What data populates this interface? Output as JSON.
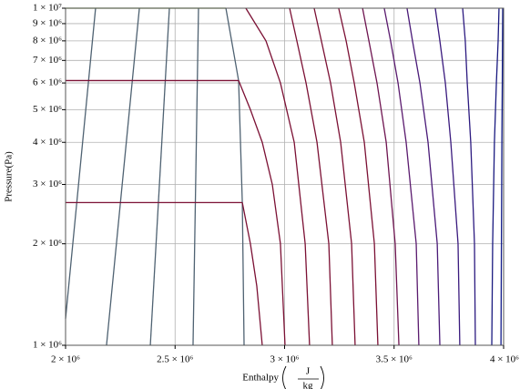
{
  "chart_data": {
    "type": "line",
    "ylabel": "Pressure(Pa)",
    "xlabel": "Enthalpy",
    "xunit_numerator": "J",
    "xunit_denominator": "kg",
    "ylog": true,
    "grid": true,
    "xlim": [
      2000000,
      4000000
    ],
    "ylim": [
      1000000,
      10000000
    ],
    "xticks": [
      {
        "value": 2000000,
        "label": "2 × 10⁶"
      },
      {
        "value": 2500000,
        "label": "2.5 × 10⁶"
      },
      {
        "value": 3000000,
        "label": "3 × 10⁶"
      },
      {
        "value": 3500000,
        "label": "3.5 × 10⁶"
      },
      {
        "value": 4000000,
        "label": "4 × 10⁶"
      }
    ],
    "yticks": [
      {
        "value": 1000000,
        "label": "1 × 10⁶"
      },
      {
        "value": 2000000,
        "label": "2 × 10⁶"
      },
      {
        "value": 3000000,
        "label": "3 × 10⁶"
      },
      {
        "value": 4000000,
        "label": "4 × 10⁶"
      },
      {
        "value": 5000000,
        "label": "5 × 10⁶"
      },
      {
        "value": 6000000,
        "label": "6 × 10⁶"
      },
      {
        "value": 7000000,
        "label": "7 × 10⁶"
      },
      {
        "value": 8000000,
        "label": "8 × 10⁶"
      },
      {
        "value": 9000000,
        "label": "9 × 10⁶"
      },
      {
        "value": 10000000,
        "label": "1 × 10⁷"
      }
    ],
    "series": [
      {
        "color": "#4f6272",
        "x": [
          2000000,
          2137000
        ],
        "values": [
          1200000,
          10000000
        ]
      },
      {
        "color": "#4f6272",
        "x": [
          2187000,
          2337000
        ],
        "values": [
          1000000,
          10000000
        ]
      },
      {
        "color": "#4f6272",
        "x": [
          2387000,
          2474000
        ],
        "values": [
          1000000,
          10000000
        ]
      },
      {
        "color": "#4f6272",
        "x": [
          2582000,
          2607000
        ],
        "values": [
          1000000,
          10000000
        ]
      },
      {
        "color": "#4f6272",
        "x": [
          2732000,
          2790000,
          2807000,
          2815000
        ],
        "values": [
          10000000,
          6100000,
          2650000,
          1000000
        ]
      },
      {
        "color": "#7a9a3c",
        "x": [
          2000000,
          2732000
        ],
        "values": [
          10000000,
          10000000
        ]
      },
      {
        "color": "#7b1034",
        "x": [
          2000000,
          2790000
        ],
        "values": [
          6100000,
          6100000
        ]
      },
      {
        "color": "#7b1034",
        "x": [
          2000000,
          2807000
        ],
        "values": [
          2650000,
          2650000
        ]
      },
      {
        "color": "#7b1034",
        "x": [
          2807000,
          2844000,
          2873000,
          2898000
        ],
        "values": [
          2650000,
          2000000,
          1500000,
          1000000
        ]
      },
      {
        "color": "#7b1034",
        "x": [
          2790000,
          2844000,
          2898000,
          2944000,
          2981000,
          3002000
        ],
        "values": [
          6100000,
          5000000,
          4000000,
          3000000,
          2000000,
          1000000
        ]
      },
      {
        "color": "#7b1034",
        "x": [
          2823000,
          2915000,
          2981000,
          3044000,
          3094000,
          3114000
        ],
        "values": [
          10000000,
          8000000,
          6000000,
          4000000,
          2000000,
          1000000
        ]
      },
      {
        "color": "#7b1034",
        "x": [
          3218000,
          3202000,
          3148000,
          3098000,
          3056000,
          3023000
        ],
        "values": [
          1000000,
          2000000,
          4000000,
          6000000,
          8000000,
          10000000
        ]
      },
      {
        "color": "#7b1034",
        "x": [
          3322000,
          3306000,
          3256000,
          3210000,
          3168000,
          3135000
        ],
        "values": [
          1000000,
          2000000,
          4000000,
          6000000,
          8000000,
          10000000
        ]
      },
      {
        "color": "#7b1034",
        "x": [
          3426000,
          3410000,
          3364000,
          3318000,
          3281000,
          3247000
        ],
        "values": [
          1000000,
          2000000,
          4000000,
          6000000,
          8000000,
          10000000
        ]
      },
      {
        "color": "#6e1450",
        "x": [
          3522000,
          3505000,
          3464000,
          3422000,
          3385000,
          3356000
        ],
        "values": [
          1000000,
          2000000,
          4000000,
          6000000,
          8000000,
          10000000
        ]
      },
      {
        "color": "#5a1a6e",
        "x": [
          3613000,
          3601000,
          3555000,
          3518000,
          3484000,
          3455000
        ],
        "values": [
          1000000,
          2000000,
          4000000,
          6000000,
          8000000,
          10000000
        ]
      },
      {
        "color": "#4a1a78",
        "x": [
          3709000,
          3697000,
          3655000,
          3618000,
          3584000,
          3559000
        ],
        "values": [
          1000000,
          2000000,
          4000000,
          6000000,
          8000000,
          10000000
        ]
      },
      {
        "color": "#3a1a7e",
        "x": [
          3800000,
          3792000,
          3759000,
          3734000,
          3709000,
          3688000
        ],
        "values": [
          1000000,
          2000000,
          4000000,
          6000000,
          8000000,
          10000000
        ]
      },
      {
        "color": "#2c1a80",
        "x": [
          3871000,
          3867000,
          3850000,
          3834000,
          3825000,
          3813000
        ],
        "values": [
          1000000,
          2000000,
          4000000,
          6000000,
          8000000,
          10000000
        ]
      },
      {
        "color": "#1a1a80",
        "x": [
          3946000,
          3950000,
          3958000,
          3967000,
          3975000,
          3979000
        ],
        "values": [
          1000000,
          2000000,
          4000000,
          6000000,
          8000000,
          10000000
        ]
      },
      {
        "color": "#101a88",
        "x": [
          3988000,
          3990000,
          3992000,
          3994000,
          3995000,
          3996000
        ],
        "values": [
          1000000,
          2000000,
          4000000,
          6000000,
          8000000,
          10000000
        ]
      }
    ]
  }
}
